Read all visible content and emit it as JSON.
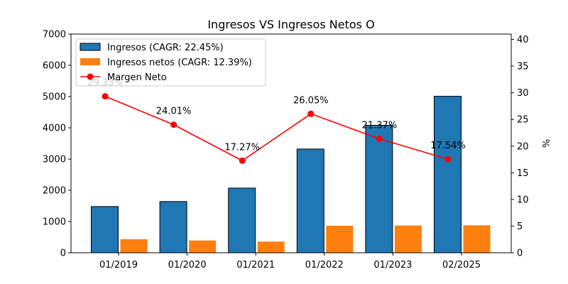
{
  "chart_data": {
    "type": "bar",
    "title": "Ingresos VS Ingresos Netos O",
    "categories": [
      "01/2019",
      "01/2020",
      "01/2021",
      "01/2022",
      "01/2023",
      "02/2025"
    ],
    "ylim": [
      0,
      7000
    ],
    "y_ticks": [
      "0",
      "1000",
      "2000",
      "3000",
      "4000",
      "5000",
      "6000",
      "7000"
    ],
    "y2label": "%",
    "y2lim": [
      0,
      41
    ],
    "y2_ticks": [
      "0",
      "5",
      "10",
      "15",
      "20",
      "25",
      "30",
      "35",
      "40"
    ],
    "legend_position": "top-left",
    "series": [
      {
        "name": "Ingresos (CAGR: 22.45%)",
        "type": "bar",
        "color": "#1f77b4",
        "values": [
          1480,
          1640,
          2070,
          3320,
          4080,
          5010
        ]
      },
      {
        "name": "Ingresos netos (CAGR: 12.39%)",
        "type": "bar",
        "color": "#ff7f0e",
        "values": [
          434,
          393,
          358,
          865,
          872,
          879
        ]
      },
      {
        "name": "Margen Neto",
        "type": "line",
        "axis": "right",
        "color": "#ff0000",
        "values": [
          29.33,
          24.01,
          17.27,
          26.05,
          21.37,
          17.54
        ],
        "labels": [
          "29.33%",
          "24.01%",
          "17.27%",
          "26.05%",
          "21.37%",
          "17.54%"
        ]
      }
    ]
  }
}
